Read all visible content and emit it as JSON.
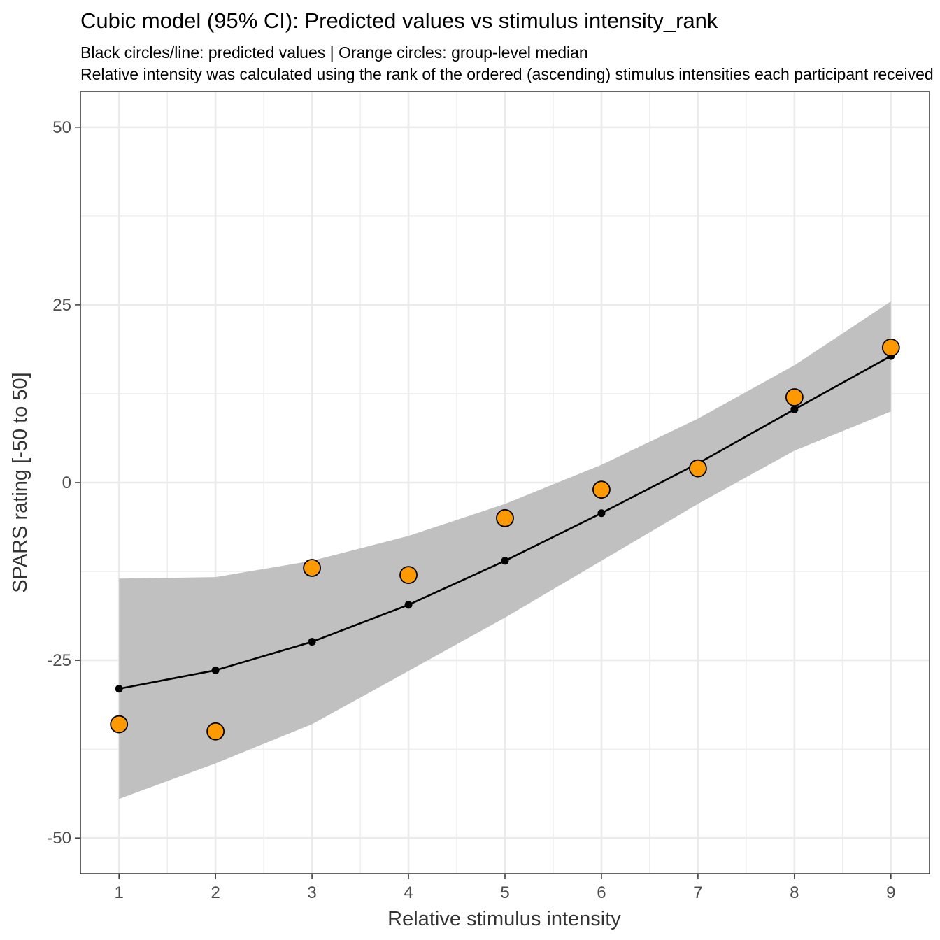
{
  "chart_data": {
    "type": "line",
    "title": "Cubic model (95% CI): Predicted values vs stimulus intensity_rank",
    "subtitle_lines": [
      "Black circles/line: predicted values | Orange circles: group-level median",
      "Relative intensity was calculated using the rank of the ordered (ascending) stimulus intensities each participant received"
    ],
    "xlabel": "Relative stimulus intensity",
    "ylabel": "SPARS rating [-50 to 50]",
    "x": [
      1,
      2,
      3,
      4,
      5,
      6,
      7,
      8,
      9
    ],
    "xlim": [
      0.6,
      9.4
    ],
    "ylim": [
      -55,
      55
    ],
    "x_ticks": [
      1,
      2,
      3,
      4,
      5,
      6,
      7,
      8,
      9
    ],
    "y_ticks": [
      -50,
      -25,
      0,
      25,
      50
    ],
    "grid": true,
    "series": [
      {
        "name": "predicted values",
        "color": "#000000",
        "values": [
          -29.0,
          -26.4,
          -22.4,
          -17.2,
          -11.0,
          -4.3,
          2.7,
          10.3,
          17.8
        ]
      },
      {
        "name": "group-level median",
        "color": "#ff9900",
        "values": [
          -34.0,
          -35.0,
          -12.0,
          -13.0,
          -5.0,
          -1.0,
          2.0,
          12.0,
          19.0
        ]
      }
    ],
    "confidence_band": {
      "fill": "#c0c0c0",
      "lower": [
        -44.5,
        -39.5,
        -34.0,
        -26.5,
        -19.0,
        -11.0,
        -3.0,
        4.5,
        10.0
      ],
      "upper": [
        -13.5,
        -13.3,
        -11.0,
        -7.5,
        -3.0,
        2.5,
        9.0,
        16.5,
        25.5
      ]
    }
  }
}
